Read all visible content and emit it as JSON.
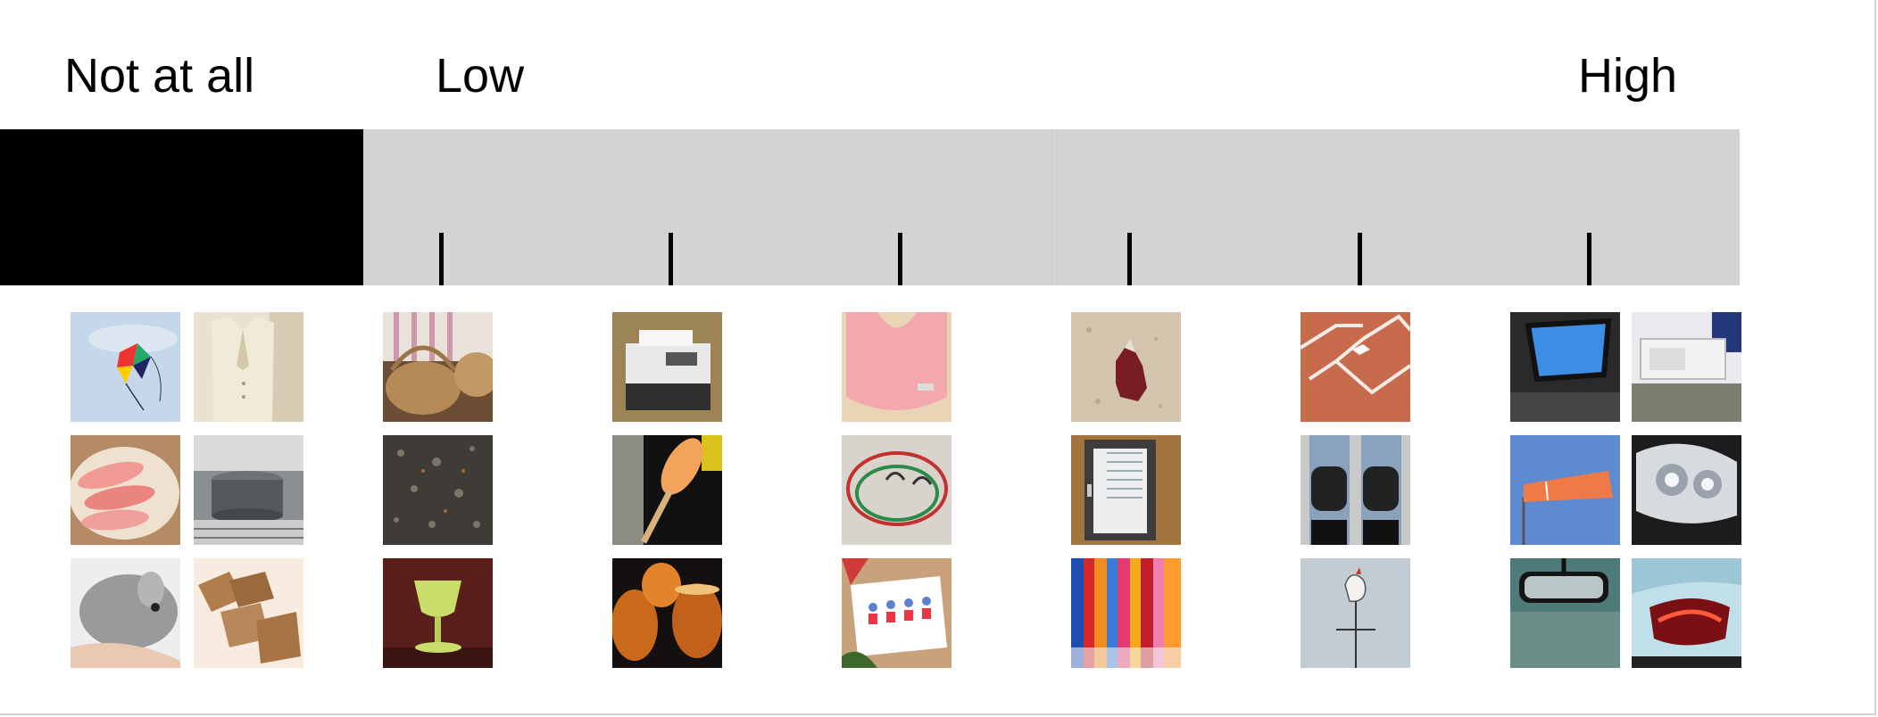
{
  "scale": {
    "labels": {
      "not_at_all": "Not at all",
      "low": "Low",
      "high": "High"
    },
    "colors": {
      "not_at_all_block": "#000000",
      "scale_bar": "#d3d3d3",
      "tick": "#000000",
      "midline": "#b9d8b9"
    },
    "tick_count": 6
  },
  "image_groups": [
    {
      "level": "not-at-all",
      "images": [
        "kite",
        "cream-blazer",
        "raw-shrimp",
        "cooking-pot-on-stove",
        "chinchilla",
        "cardboard-coasters"
      ]
    },
    {
      "level": "1",
      "images": [
        "wicker-baskets",
        "gravel-ground",
        "green-glass-goblet"
      ]
    },
    {
      "level": "2",
      "images": [
        "office-printer",
        "kayak-paddle",
        "glasses-of-beer"
      ]
    },
    {
      "level": "3",
      "images": [
        "pink-baby-bib",
        "bungee-cords",
        "christmas-card"
      ]
    },
    {
      "level": "4",
      "images": [
        "work-glove-on-sand",
        "window-frame",
        "colorful-umbrellas"
      ]
    },
    {
      "level": "5",
      "images": [
        "baseball-base",
        "knee-pads",
        "weather-vane"
      ]
    },
    {
      "level": "high",
      "images": [
        "car-sunroof",
        "air-conditioner-unit",
        "windsock",
        "car-headlight",
        "rearview-mirror",
        "car-taillight"
      ]
    }
  ]
}
